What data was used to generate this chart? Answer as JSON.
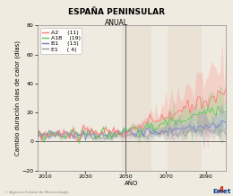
{
  "title": "ESPAÑA PENINSULAR",
  "subtitle": "ANUAL",
  "xlabel": "AÑO",
  "ylabel": "Cambio duración olas de calor (días)",
  "xlim": [
    2006,
    2100
  ],
  "ylim": [
    -20,
    80
  ],
  "yticks": [
    -20,
    0,
    20,
    40,
    60,
    80
  ],
  "xticks": [
    2010,
    2030,
    2050,
    2070,
    2090
  ],
  "vline_x": 2050,
  "scenarios": [
    "A2",
    "A1B",
    "B1",
    "E1"
  ],
  "scenario_counts": [
    "(11)",
    "(19)",
    "(13)",
    "( 4)"
  ],
  "colors": {
    "A2": "#ff7777",
    "A1B": "#55cc55",
    "B1": "#7777cc",
    "E1": "#999999"
  },
  "bg_color": "#f0ebe0",
  "plot_bg": "#f0ebe0",
  "shade1": [
    2048,
    2063
  ],
  "shade2": [
    2071,
    2088
  ],
  "title_fontsize": 6.5,
  "subtitle_fontsize": 5.5,
  "axis_fontsize": 5.0,
  "tick_fontsize": 4.5,
  "legend_fontsize": 4.5
}
